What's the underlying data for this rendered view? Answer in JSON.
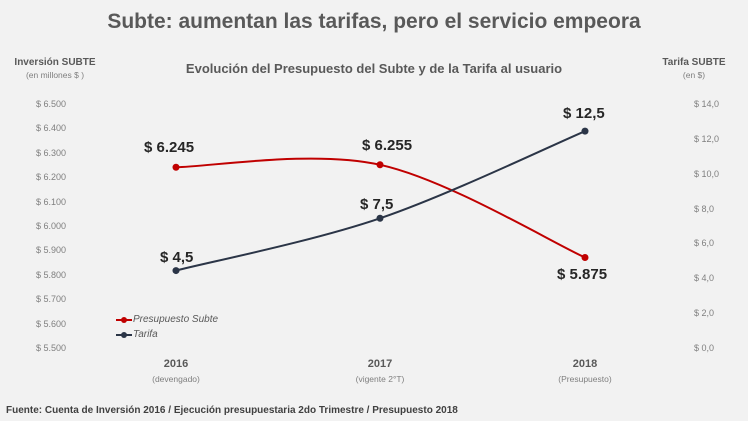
{
  "chart_data": {
    "type": "line",
    "title": "Subte: aumentan las tarifas, pero el servicio empeora",
    "subtitle": "Evolución del Presupuesto del Subte y de la Tarifa al usuario",
    "categories": [
      "2016",
      "2017",
      "2018"
    ],
    "category_notes": [
      "(devengado)",
      "(vigente 2°T)",
      "(Presupuesto)"
    ],
    "left_axis": {
      "label": "Inversión SUBTE",
      "unit": "(en millones $ )",
      "range": [
        5500,
        6500
      ],
      "ticks": [
        "$ 5.500",
        "$ 5.600",
        "$ 5.700",
        "$ 5.800",
        "$ 5.900",
        "$ 6.000",
        "$ 6.100",
        "$ 6.200",
        "$ 6.300",
        "$ 6.400",
        "$ 6.500"
      ]
    },
    "right_axis": {
      "label": "Tarifa SUBTE",
      "unit": "(en $)",
      "range": [
        0,
        14
      ],
      "ticks": [
        "$ 0,0",
        "$ 2,0",
        "$ 4,0",
        "$ 6,0",
        "$ 8,0",
        "$ 10,0",
        "$ 12,0",
        "$ 14,0"
      ]
    },
    "series": [
      {
        "name": "Presupuesto Subte",
        "axis": "left",
        "color": "#c00000",
        "values": [
          6245,
          6255,
          5875
        ],
        "labels": [
          "$ 6.245",
          "$ 6.255",
          "$ 5.875"
        ]
      },
      {
        "name": "Tarifa",
        "axis": "right",
        "color": "#2b3547",
        "values": [
          4.5,
          7.5,
          12.5
        ],
        "labels": [
          "$ 4,5",
          "$ 7,5",
          "$ 12,5"
        ]
      }
    ],
    "legend": "bottom-left",
    "grid": false,
    "smooth": true
  },
  "source": "Fuente: Cuenta de Inversión 2016 / Ejecución presupuestaria 2do Trimestre / Presupuesto 2018"
}
